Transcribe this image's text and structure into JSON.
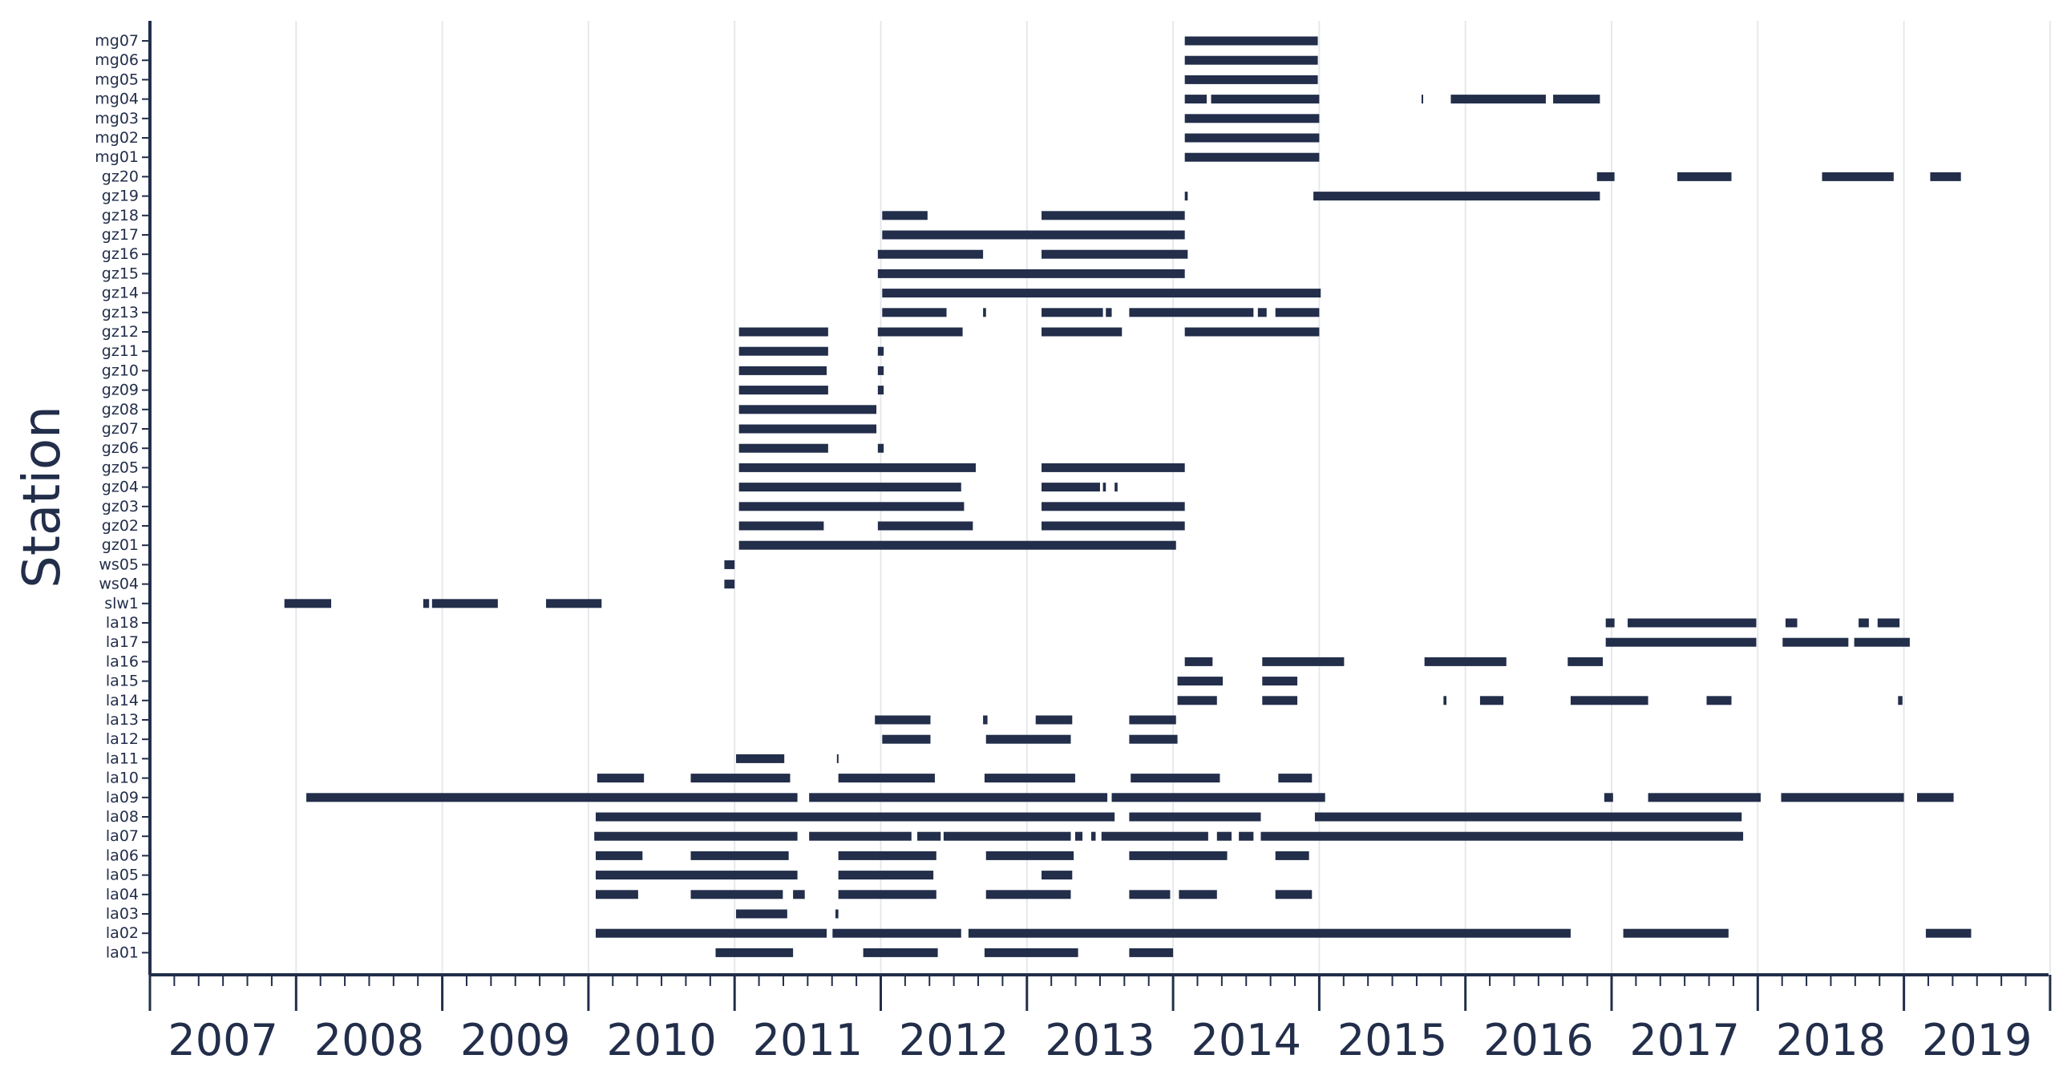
{
  "chart_data": {
    "type": "timeline",
    "ylabel": "Station",
    "xlabel": "",
    "xlim": [
      2007,
      2020
    ],
    "grid": "vertical",
    "color": "#222e4a",
    "x_ticks": [
      "2007",
      "2008",
      "2009",
      "2010",
      "2011",
      "2012",
      "2013",
      "2014",
      "2015",
      "2016",
      "2017",
      "2018",
      "2019"
    ],
    "stations": [
      {
        "name": "mg07",
        "segments": [
          [
            2014.08,
            2014.99
          ]
        ]
      },
      {
        "name": "mg06",
        "segments": [
          [
            2014.08,
            2014.99
          ]
        ]
      },
      {
        "name": "mg05",
        "segments": [
          [
            2014.08,
            2014.99
          ]
        ]
      },
      {
        "name": "mg04",
        "segments": [
          [
            2014.08,
            2014.23
          ],
          [
            2014.26,
            2015.0
          ],
          [
            2015.7,
            2015.71
          ],
          [
            2015.9,
            2016.55
          ],
          [
            2016.6,
            2016.92
          ]
        ]
      },
      {
        "name": "mg03",
        "segments": [
          [
            2014.08,
            2015.0
          ]
        ]
      },
      {
        "name": "mg02",
        "segments": [
          [
            2014.08,
            2015.0
          ]
        ]
      },
      {
        "name": "mg01",
        "segments": [
          [
            2014.08,
            2015.0
          ]
        ]
      },
      {
        "name": "gz20",
        "segments": [
          [
            2016.9,
            2017.02
          ],
          [
            2017.45,
            2017.82
          ],
          [
            2018.44,
            2018.93
          ],
          [
            2019.18,
            2019.39
          ]
        ]
      },
      {
        "name": "gz19",
        "segments": [
          [
            2014.08,
            2014.1
          ],
          [
            2014.96,
            2016.92
          ]
        ]
      },
      {
        "name": "gz18",
        "segments": [
          [
            2012.01,
            2012.32
          ],
          [
            2013.1,
            2014.08
          ]
        ]
      },
      {
        "name": "gz17",
        "segments": [
          [
            2012.01,
            2014.08
          ]
        ]
      },
      {
        "name": "gz16",
        "segments": [
          [
            2011.98,
            2012.7
          ],
          [
            2013.1,
            2014.1
          ]
        ]
      },
      {
        "name": "gz15",
        "segments": [
          [
            2011.98,
            2014.08
          ]
        ]
      },
      {
        "name": "gz14",
        "segments": [
          [
            2012.01,
            2015.01
          ]
        ]
      },
      {
        "name": "gz13",
        "segments": [
          [
            2012.01,
            2012.45
          ],
          [
            2012.7,
            2012.72
          ],
          [
            2013.1,
            2013.52
          ],
          [
            2013.54,
            2013.58
          ],
          [
            2013.7,
            2014.55
          ],
          [
            2014.58,
            2014.64
          ],
          [
            2014.7,
            2015.0
          ]
        ]
      },
      {
        "name": "gz12",
        "segments": [
          [
            2011.03,
            2011.64
          ],
          [
            2011.98,
            2012.56
          ],
          [
            2013.1,
            2013.65
          ],
          [
            2014.08,
            2015.0
          ]
        ]
      },
      {
        "name": "gz11",
        "segments": [
          [
            2011.03,
            2011.64
          ],
          [
            2011.98,
            2012.02
          ]
        ]
      },
      {
        "name": "gz10",
        "segments": [
          [
            2011.03,
            2011.63
          ],
          [
            2011.98,
            2012.02
          ]
        ]
      },
      {
        "name": "gz09",
        "segments": [
          [
            2011.03,
            2011.64
          ],
          [
            2011.98,
            2012.02
          ]
        ]
      },
      {
        "name": "gz08",
        "segments": [
          [
            2011.03,
            2011.97
          ]
        ]
      },
      {
        "name": "gz07",
        "segments": [
          [
            2011.03,
            2011.97
          ]
        ]
      },
      {
        "name": "gz06",
        "segments": [
          [
            2011.03,
            2011.64
          ],
          [
            2011.98,
            2012.02
          ]
        ]
      },
      {
        "name": "gz05",
        "segments": [
          [
            2011.03,
            2012.65
          ],
          [
            2013.1,
            2014.08
          ]
        ]
      },
      {
        "name": "gz04",
        "segments": [
          [
            2011.03,
            2012.55
          ],
          [
            2013.1,
            2013.5
          ],
          [
            2013.52,
            2013.54
          ],
          [
            2013.6,
            2013.62
          ]
        ]
      },
      {
        "name": "gz03",
        "segments": [
          [
            2011.03,
            2012.57
          ],
          [
            2013.1,
            2014.08
          ]
        ]
      },
      {
        "name": "gz02",
        "segments": [
          [
            2011.03,
            2011.61
          ],
          [
            2011.98,
            2012.63
          ],
          [
            2013.1,
            2014.08
          ]
        ]
      },
      {
        "name": "gz01",
        "segments": [
          [
            2011.03,
            2014.02
          ]
        ]
      },
      {
        "name": "ws05",
        "segments": [
          [
            2010.93,
            2011.0
          ]
        ]
      },
      {
        "name": "ws04",
        "segments": [
          [
            2010.93,
            2011.0
          ]
        ]
      },
      {
        "name": "slw1",
        "segments": [
          [
            2007.92,
            2008.24
          ],
          [
            2008.87,
            2008.91
          ],
          [
            2008.93,
            2009.38
          ],
          [
            2009.71,
            2010.09
          ]
        ]
      },
      {
        "name": "la18",
        "segments": [
          [
            2016.96,
            2017.02
          ],
          [
            2017.11,
            2017.99
          ],
          [
            2018.19,
            2018.27
          ],
          [
            2018.69,
            2018.76
          ],
          [
            2018.82,
            2018.97
          ]
        ]
      },
      {
        "name": "la17",
        "segments": [
          [
            2016.96,
            2017.99
          ],
          [
            2018.17,
            2018.62
          ],
          [
            2018.66,
            2019.04
          ]
        ]
      },
      {
        "name": "la16",
        "segments": [
          [
            2014.08,
            2014.27
          ],
          [
            2014.61,
            2015.17
          ],
          [
            2015.72,
            2016.28
          ],
          [
            2016.7,
            2016.94
          ]
        ]
      },
      {
        "name": "la15",
        "segments": [
          [
            2014.03,
            2014.34
          ],
          [
            2014.61,
            2014.85
          ]
        ]
      },
      {
        "name": "la14",
        "segments": [
          [
            2014.03,
            2014.3
          ],
          [
            2014.61,
            2014.85
          ],
          [
            2015.85,
            2015.87
          ],
          [
            2016.1,
            2016.26
          ],
          [
            2016.72,
            2017.25
          ],
          [
            2017.65,
            2017.82
          ],
          [
            2018.96,
            2018.99
          ]
        ]
      },
      {
        "name": "la13",
        "segments": [
          [
            2011.96,
            2012.34
          ],
          [
            2012.7,
            2012.73
          ],
          [
            2013.06,
            2013.31
          ],
          [
            2013.7,
            2014.02
          ]
        ]
      },
      {
        "name": "la12",
        "segments": [
          [
            2012.01,
            2012.34
          ],
          [
            2012.72,
            2013.3
          ],
          [
            2013.7,
            2014.03
          ]
        ]
      },
      {
        "name": "la11",
        "segments": [
          [
            2011.01,
            2011.34
          ],
          [
            2011.7,
            2011.71
          ]
        ]
      },
      {
        "name": "la10",
        "segments": [
          [
            2010.06,
            2010.38
          ],
          [
            2010.7,
            2011.38
          ],
          [
            2011.71,
            2012.37
          ],
          [
            2012.71,
            2013.33
          ],
          [
            2013.71,
            2014.32
          ],
          [
            2014.72,
            2014.95
          ]
        ]
      },
      {
        "name": "la09",
        "segments": [
          [
            2008.07,
            2011.43
          ],
          [
            2011.51,
            2013.55
          ],
          [
            2013.58,
            2015.04
          ],
          [
            2016.95,
            2017.01
          ],
          [
            2017.25,
            2018.02
          ],
          [
            2018.16,
            2019.0
          ],
          [
            2019.09,
            2019.34
          ]
        ]
      },
      {
        "name": "la08",
        "segments": [
          [
            2010.05,
            2013.6
          ],
          [
            2013.7,
            2014.6
          ],
          [
            2014.97,
            2017.89
          ]
        ]
      },
      {
        "name": "la07",
        "segments": [
          [
            2010.04,
            2011.43
          ],
          [
            2011.51,
            2012.21
          ],
          [
            2012.25,
            2012.41
          ],
          [
            2012.43,
            2013.3
          ],
          [
            2013.33,
            2013.38
          ],
          [
            2013.44,
            2013.47
          ],
          [
            2013.51,
            2014.24
          ],
          [
            2014.3,
            2014.4
          ],
          [
            2014.45,
            2014.55
          ],
          [
            2014.6,
            2017.9
          ]
        ]
      },
      {
        "name": "la06",
        "segments": [
          [
            2010.05,
            2010.37
          ],
          [
            2010.7,
            2011.37
          ],
          [
            2011.71,
            2012.38
          ],
          [
            2012.72,
            2013.32
          ],
          [
            2013.7,
            2014.37
          ],
          [
            2014.7,
            2014.93
          ]
        ]
      },
      {
        "name": "la05",
        "segments": [
          [
            2010.05,
            2011.43
          ],
          [
            2011.71,
            2012.36
          ],
          [
            2013.1,
            2013.31
          ]
        ]
      },
      {
        "name": "la04",
        "segments": [
          [
            2010.05,
            2010.34
          ],
          [
            2010.7,
            2011.33
          ],
          [
            2011.4,
            2011.48
          ],
          [
            2011.71,
            2012.38
          ],
          [
            2012.72,
            2013.3
          ],
          [
            2013.7,
            2013.98
          ],
          [
            2014.04,
            2014.3
          ],
          [
            2014.7,
            2014.95
          ]
        ]
      },
      {
        "name": "la03",
        "segments": [
          [
            2011.01,
            2011.36
          ],
          [
            2011.69,
            2011.71
          ]
        ]
      },
      {
        "name": "la02",
        "segments": [
          [
            2010.05,
            2011.63
          ],
          [
            2011.67,
            2012.55
          ],
          [
            2012.6,
            2016.72
          ],
          [
            2017.08,
            2017.8
          ],
          [
            2019.15,
            2019.46
          ]
        ]
      },
      {
        "name": "la01",
        "segments": [
          [
            2010.87,
            2011.4
          ],
          [
            2011.88,
            2012.39
          ],
          [
            2012.71,
            2013.35
          ],
          [
            2013.7,
            2014.0
          ]
        ]
      }
    ]
  }
}
